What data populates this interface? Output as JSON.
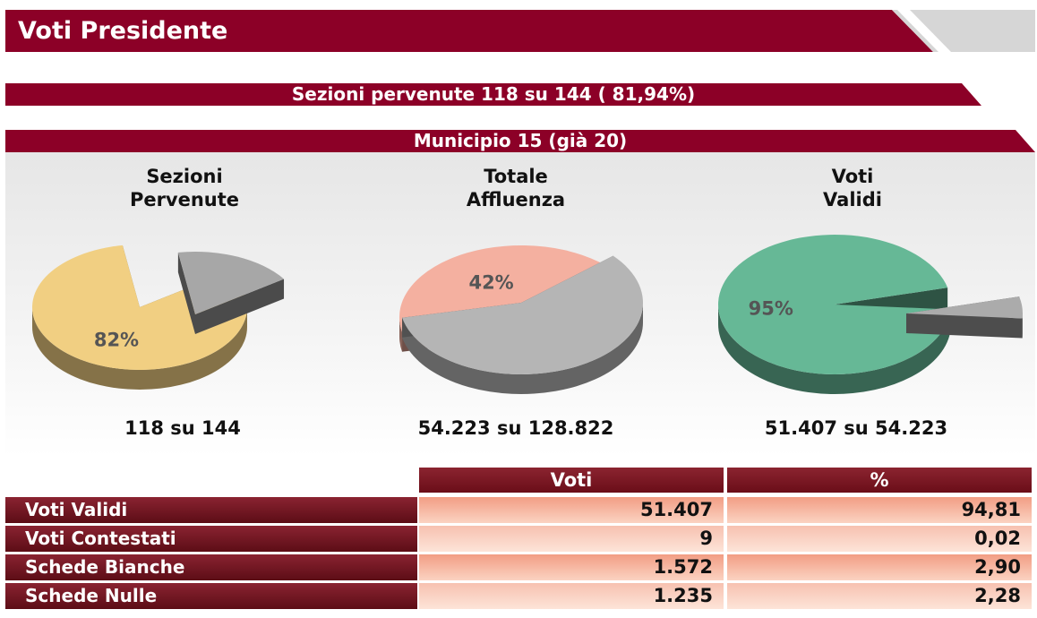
{
  "header": {
    "title": "Voti Presidente"
  },
  "ribbon_sezioni": "Sezioni pervenute 118 su 144 ( 81,94%)",
  "ribbon_municipio": "Municipio 15 (già 20)",
  "pies": [
    {
      "title_line1": "Sezioni",
      "title_line2": "Pervenute",
      "percent_label": "82%",
      "caption": "118 su 144"
    },
    {
      "title_line1": "Totale",
      "title_line2": "Affluenza",
      "percent_label": "42%",
      "caption": "54.223 su 128.822"
    },
    {
      "title_line1": "Voti",
      "title_line2": "Validi",
      "percent_label": "95%",
      "caption": "51.407 su 54.223"
    }
  ],
  "chart_data": [
    {
      "type": "pie",
      "title": "Sezioni Pervenute",
      "values": [
        82,
        18
      ],
      "colors": [
        "#f1cf82",
        "#a7a7a7"
      ]
    },
    {
      "type": "pie",
      "title": "Totale Affluenza",
      "values": [
        42,
        58
      ],
      "colors": [
        "#f4b0a0",
        "#b5b5b5"
      ]
    },
    {
      "type": "pie",
      "title": "Voti Validi",
      "values": [
        95,
        5
      ],
      "colors": [
        "#66b896",
        "#ababab"
      ]
    }
  ],
  "table": {
    "columns": [
      "Voti",
      "%"
    ],
    "rows": [
      {
        "label": "Voti Validi",
        "voti": "51.407",
        "pct": "94,81"
      },
      {
        "label": "Voti Contestati",
        "voti": "9",
        "pct": "0,02"
      },
      {
        "label": "Schede Bianche",
        "voti": "1.572",
        "pct": "2,90"
      },
      {
        "label": "Schede Nulle",
        "voti": "1.235",
        "pct": "2,28"
      }
    ]
  },
  "colors": {
    "bordeaux": "#8c0027",
    "header_gray": "#d9d9d9"
  }
}
